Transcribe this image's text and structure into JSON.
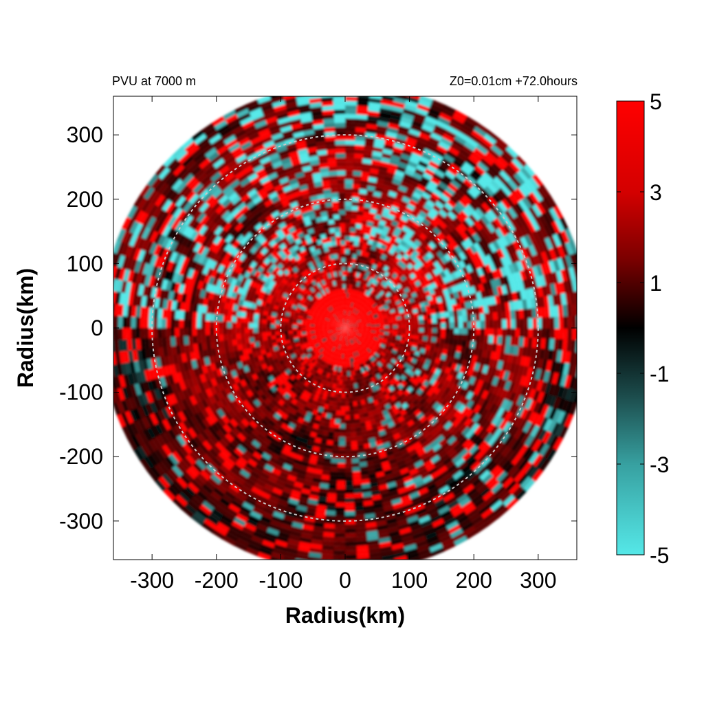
{
  "chart_data": {
    "type": "heatmap",
    "title_left": "PVU at  7000 m",
    "title_right": "Z0=0.01cm  +72.0hours",
    "xlabel": "Radius(km)",
    "ylabel": "Radius(km)",
    "xlim": [
      -360,
      360
    ],
    "ylim": [
      -360,
      360
    ],
    "x_ticks": [
      -300,
      -200,
      -100,
      0,
      100,
      200,
      300
    ],
    "y_ticks": [
      300,
      200,
      100,
      0,
      -100,
      -200,
      -300
    ],
    "domain_radius": 380,
    "reference_circles_km": [
      100,
      200,
      300
    ],
    "colorbar": {
      "min": -5,
      "max": 5,
      "ticks": [
        5,
        3,
        1,
        -1,
        -3,
        -5
      ],
      "colors": {
        "min": "#55e8e8",
        "zero": "#000000",
        "max": "#ff0000"
      }
    },
    "features": {
      "core_value": 5,
      "core_radius_km": 60
    }
  }
}
